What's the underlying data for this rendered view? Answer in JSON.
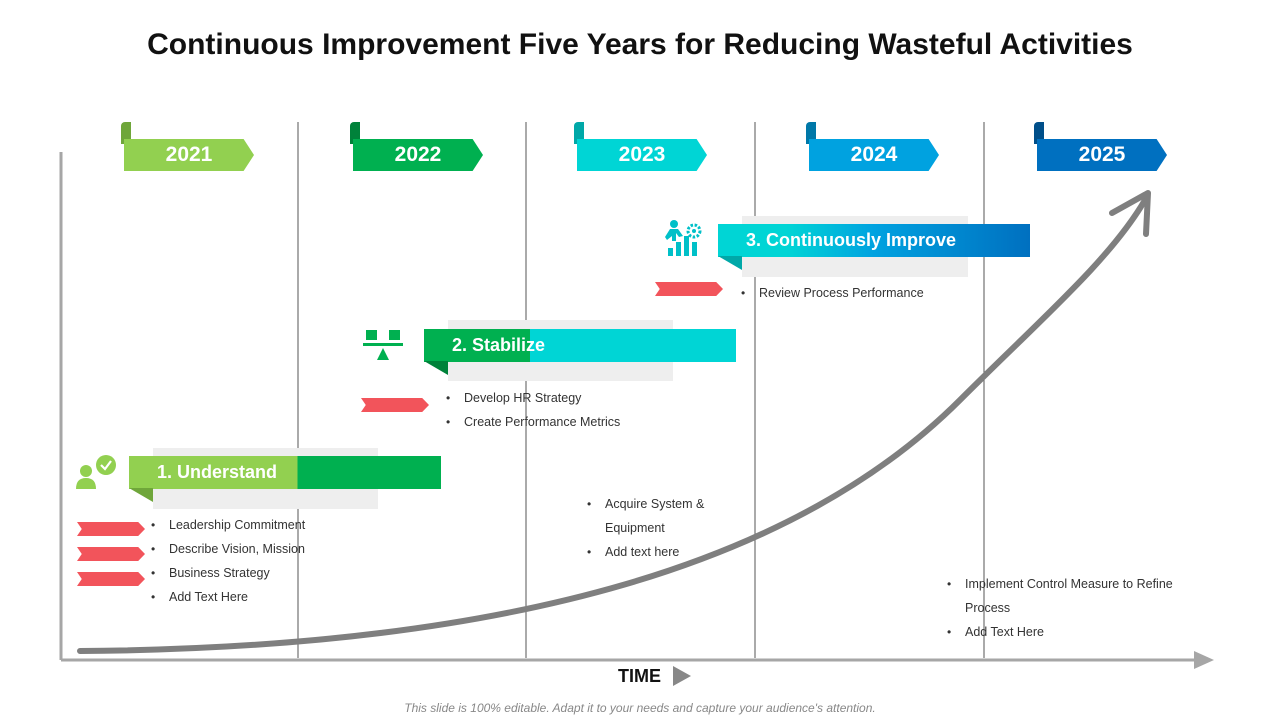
{
  "title": "Continuous Improvement Five Years for Reducing Wasteful Activities",
  "years": [
    {
      "label": "2021",
      "color": "#92d050"
    },
    {
      "label": "2022",
      "color": "#00b050"
    },
    {
      "label": "2023",
      "color": "#00d5d5"
    },
    {
      "label": "2024",
      "color": "#00a2e0"
    },
    {
      "label": "2025",
      "color": "#0070c0"
    }
  ],
  "phases": [
    {
      "label": "1. Understand",
      "colors": [
        "#92d050",
        "#00b050"
      ],
      "icon": "person-check-icon",
      "bullets": [
        "Leadership Commitment",
        "Describe Vision, Mission",
        "Business Strategy",
        "Add Text Here"
      ]
    },
    {
      "label": "2. Stabilize",
      "colors": [
        "#00b050",
        "#00d5d5"
      ],
      "icon": "balance-icon",
      "bullets": [
        "Develop HR Strategy",
        "Create Performance Metrics"
      ]
    },
    {
      "label": "3. Continuously Improve",
      "colors": [
        "#00d5d5",
        "#0070c0"
      ],
      "icon": "growth-person-gear-icon",
      "bullets": [
        "Review Process Performance"
      ]
    }
  ],
  "notes": {
    "year_2023": [
      "Acquire System & Equipment",
      "Add text here"
    ],
    "year_2025": [
      "Implement Control Measure to Refine Process",
      "Add Text Here"
    ]
  },
  "axis": {
    "x_label": "TIME"
  },
  "footer": "This slide is 100% editable. Adapt it to your needs and capture your audience's attention.",
  "colors": {
    "accent_red": "#f2545b",
    "axis_gray": "#a6a6a6",
    "curve_gray": "#7f7f7f"
  }
}
